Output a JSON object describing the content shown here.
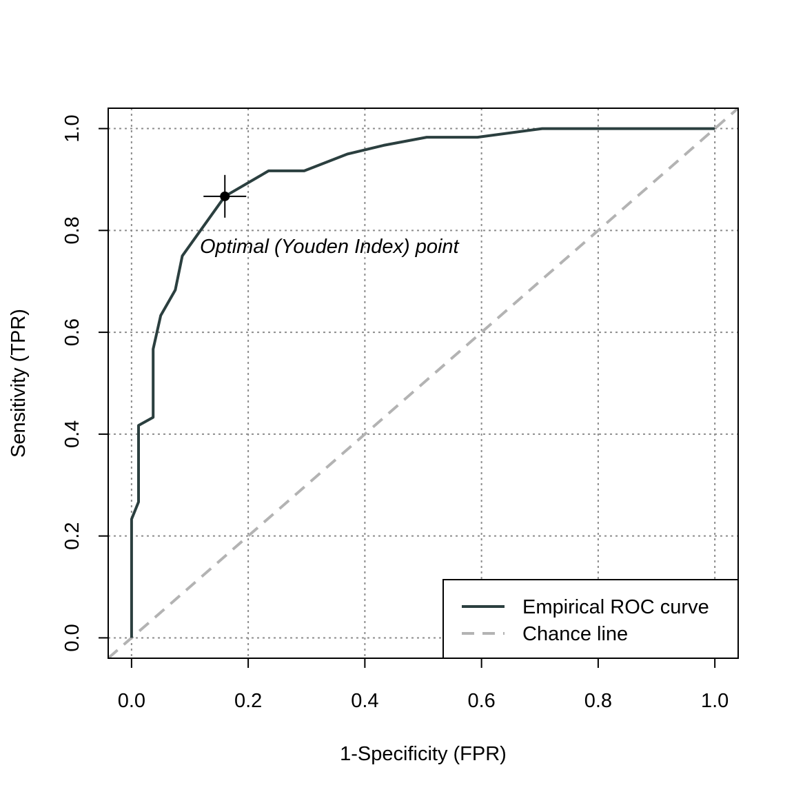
{
  "chart_data": {
    "type": "line",
    "title": "",
    "xlabel": "1-Specificity (FPR)",
    "ylabel": "Sensitivity (TPR)",
    "xlim": [
      -0.04,
      1.04
    ],
    "ylim": [
      -0.04,
      1.04
    ],
    "xticks": [
      "0.0",
      "0.2",
      "0.4",
      "0.6",
      "0.8",
      "1.0"
    ],
    "yticks": [
      "0.0",
      "0.2",
      "0.4",
      "0.6",
      "0.8",
      "1.0"
    ],
    "grid": true,
    "grid_style": "dotted",
    "legend_position": "bottom-right",
    "series": [
      {
        "name": "Empirical ROC curve",
        "color": "#2b3f3f",
        "style": "solid",
        "x": [
          0.0,
          0.0,
          0.0,
          0.012,
          0.012,
          0.037,
          0.037,
          0.05,
          0.075,
          0.087,
          0.16,
          0.235,
          0.296,
          0.37,
          0.432,
          0.506,
          0.593,
          0.704,
          1.0
        ],
        "y": [
          0.0,
          0.0,
          0.233,
          0.267,
          0.417,
          0.433,
          0.567,
          0.633,
          0.683,
          0.75,
          0.867,
          0.917,
          0.917,
          0.95,
          0.967,
          0.983,
          0.983,
          1.0,
          1.0
        ]
      },
      {
        "name": "Chance line",
        "color": "#b3b3b3",
        "style": "dashed",
        "x": [
          -0.04,
          1.04
        ],
        "y": [
          -0.04,
          1.04
        ]
      }
    ],
    "optimal_point": {
      "x": 0.16,
      "y": 0.867
    },
    "annotation": "Optimal (Youden Index) point"
  }
}
